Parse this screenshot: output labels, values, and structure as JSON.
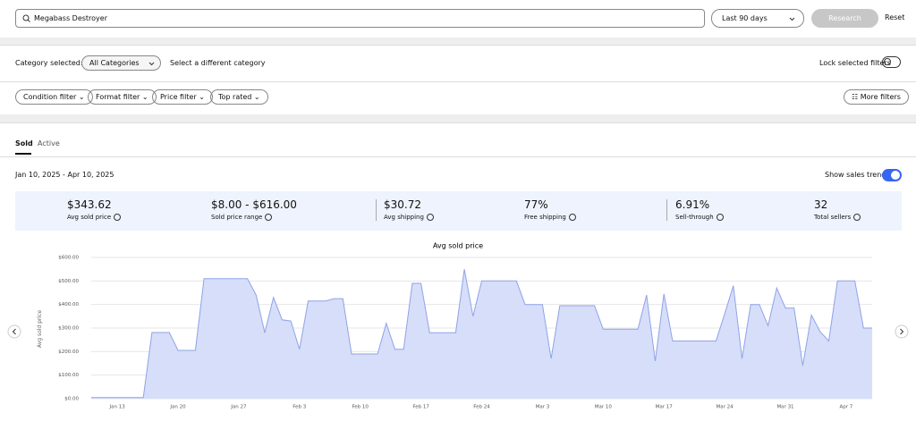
{
  "search": {
    "query": "Megabass Destroyer",
    "range": "Last 90 days",
    "button": "Research",
    "reset": "Reset"
  },
  "filters": {
    "category_label": "Category selected:",
    "category": "All Categories",
    "change": "Select a different category",
    "lock": "Lock selected filters",
    "buttons": [
      "Condition filter",
      "Format filter",
      "Price filter",
      "Top rated"
    ],
    "more": "More filters"
  },
  "tabs": [
    "Sold",
    "Active"
  ],
  "date_range": "Jan 10, 2025 - Apr 10, 2025",
  "trends": "Show sales trends",
  "stats": [
    {
      "value": "$343.62",
      "label": "Avg sold price"
    },
    {
      "value": "$8.00 - $616.00",
      "label": "Sold price range"
    },
    {
      "value": "$30.72",
      "label": "Avg shipping"
    },
    {
      "value": "77%",
      "label": "Free shipping"
    },
    {
      "value": "6.91%",
      "label": "Sell-through"
    },
    {
      "value": "32",
      "label": "Total sellers"
    }
  ],
  "chart_data": {
    "type": "line",
    "title": "Avg sold price",
    "ylabel": "Avg sold price",
    "color": "#8fa3e6",
    "fill": "#d6defa",
    "categories": [
      null,
      null,
      null,
      "Jan 13",
      null,
      null,
      null,
      null,
      null,
      null,
      "Jan 20",
      null,
      null,
      null,
      null,
      null,
      null,
      "Jan 27",
      null,
      null,
      null,
      null,
      null,
      null,
      "Feb 3",
      null,
      null,
      null,
      null,
      null,
      null,
      "Feb 10",
      null,
      null,
      null,
      null,
      null,
      null,
      "Feb 17",
      null,
      null,
      null,
      null,
      null,
      null,
      "Feb 24",
      null,
      null,
      null,
      null,
      null,
      null,
      "Mar 3",
      null,
      null,
      null,
      null,
      null,
      null,
      "Mar 10",
      null,
      null,
      null,
      null,
      null,
      null,
      "Mar 17",
      null,
      null,
      null,
      null,
      null,
      null,
      "Mar 24",
      null,
      null,
      null,
      null,
      null,
      null,
      "Mar 31",
      null,
      null,
      null,
      null,
      null,
      null,
      "Apr 7",
      null,
      null,
      null
    ],
    "values": [
      5,
      5,
      5,
      5,
      5,
      5,
      5,
      281,
      281,
      281,
      205,
      205,
      205,
      510,
      510,
      510,
      510,
      510,
      510,
      440,
      280,
      430,
      335,
      330,
      210,
      415,
      415,
      415,
      425,
      425,
      190,
      190,
      190,
      190,
      320,
      210,
      210,
      490,
      490,
      280,
      280,
      280,
      280,
      550,
      350,
      500,
      500,
      500,
      500,
      500,
      400,
      400,
      400,
      170,
      395,
      395,
      395,
      395,
      395,
      295,
      295,
      295,
      295,
      295,
      440,
      160,
      445,
      245,
      245,
      245,
      245,
      245,
      245,
      360,
      480,
      170,
      400,
      400,
      310,
      470,
      385,
      385,
      140,
      355,
      285,
      245,
      500,
      500,
      500,
      300,
      300
    ],
    "ylim": [
      0,
      600
    ],
    "yticks": [
      {
        "value": 0,
        "label": "$0.00"
      },
      {
        "value": 100,
        "label": "$100.00"
      },
      {
        "value": 200,
        "label": "$200.00"
      },
      {
        "value": 300,
        "label": "$300.00"
      },
      {
        "value": 400,
        "label": "$400.00"
      },
      {
        "value": 500,
        "label": "$500.00"
      },
      {
        "value": 600,
        "label": "$600.00"
      }
    ],
    "grid": true
  }
}
